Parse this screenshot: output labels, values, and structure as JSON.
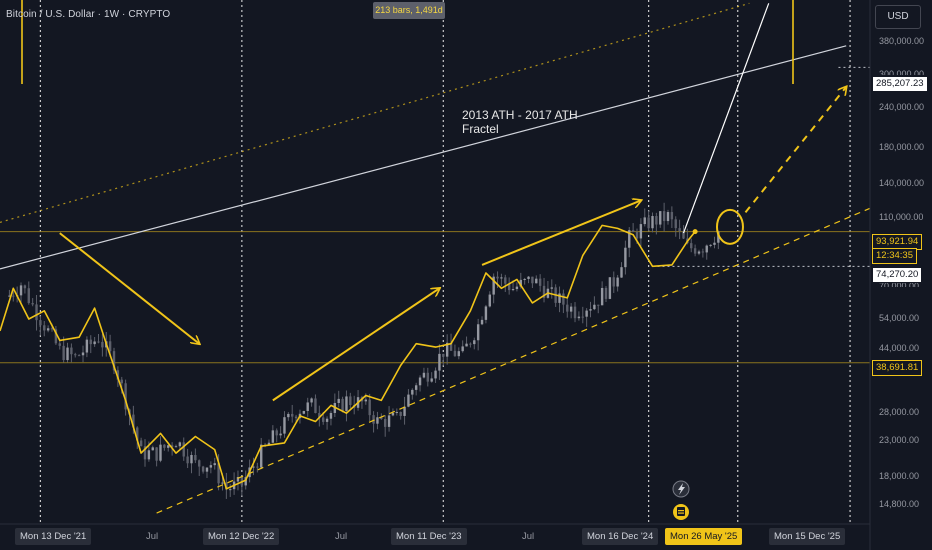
{
  "header": {
    "symbol_title": "Bitcoin / U.S. Dollar · 1W · CRYPTO"
  },
  "currency_button": {
    "label": "USD"
  },
  "measure_label": "213 bars, 1,491d",
  "annotation": {
    "line1": "2013 ATH - 2017 ATH",
    "line2": "Fractel"
  },
  "price_axis": {
    "labels": [
      "380,000.00",
      "240,000.00",
      "180,000.00",
      "140,000.00",
      "110,000.00",
      "54,000.00",
      "44,000.00",
      "28,000.00",
      "23,000.00",
      "18,000.00",
      "14,800.00"
    ],
    "partial_labels": [
      "300,000.00",
      "70,000.00"
    ]
  },
  "price_badges": {
    "target": "285,207.23",
    "current_price": "93,921.94",
    "countdown": "12:34:35",
    "level_low": "74,270.20",
    "level_support": "38,691.81"
  },
  "time_axis": {
    "labels": [
      {
        "text": "Mon 13 Dec '21",
        "style": "box"
      },
      {
        "text": "Jul",
        "style": "plain"
      },
      {
        "text": "Mon 12 Dec '22",
        "style": "box"
      },
      {
        "text": "Jul",
        "style": "plain"
      },
      {
        "text": "Mon 11 Dec '23",
        "style": "box"
      },
      {
        "text": "Jul",
        "style": "plain"
      },
      {
        "text": "Mon 16 Dec '24",
        "style": "box"
      },
      {
        "text": "Mon 26 May '25",
        "style": "highlight"
      },
      {
        "text": "Mon 15 Dec '25",
        "style": "box"
      }
    ]
  },
  "colors": {
    "background": "#131722",
    "fractal_line": "#f0c419",
    "candles": "#787b86",
    "trendline": "#d1d4dc"
  },
  "icons": [
    "flash-icon",
    "flag-icon"
  ],
  "chart_data": {
    "type": "line",
    "title": "Bitcoin / U.S. Dollar · 1W · CRYPTO",
    "y_scale": "log",
    "ylim": [
      13000,
      450000
    ],
    "x_range": [
      "2021-10-01",
      "2026-01-20"
    ],
    "series": [
      {
        "type": "candlestick",
        "points": [
          [
            "2021-10-18",
            61000
          ],
          [
            "2021-11-08",
            66000
          ],
          [
            "2021-11-29",
            57000
          ],
          [
            "2021-12-20",
            50000
          ],
          [
            "2022-01-17",
            42000
          ],
          [
            "2022-02-14",
            40000
          ],
          [
            "2022-03-28",
            46000
          ],
          [
            "2022-04-25",
            39000
          ],
          [
            "2022-05-16",
            30000
          ],
          [
            "2022-06-13",
            21000
          ],
          [
            "2022-07-11",
            21000
          ],
          [
            "2022-08-15",
            23000
          ],
          [
            "2022-09-19",
            19500
          ],
          [
            "2022-10-17",
            19500
          ],
          [
            "2022-11-14",
            16500
          ],
          [
            "2022-12-12",
            17000
          ],
          [
            "2023-01-16",
            21000
          ],
          [
            "2023-02-13",
            24000
          ],
          [
            "2023-03-20",
            28000
          ],
          [
            "2023-04-17",
            29000
          ],
          [
            "2023-05-15",
            27000
          ],
          [
            "2023-06-19",
            30000
          ],
          [
            "2023-07-17",
            29500
          ],
          [
            "2023-08-14",
            26000
          ],
          [
            "2023-09-18",
            26500
          ],
          [
            "2023-10-23",
            34000
          ],
          [
            "2023-11-20",
            37000
          ],
          [
            "2023-12-11",
            42000
          ],
          [
            "2024-01-15",
            41000
          ],
          [
            "2024-02-12",
            50000
          ],
          [
            "2024-03-11",
            70000
          ],
          [
            "2024-04-15",
            64000
          ],
          [
            "2024-05-20",
            68000
          ],
          [
            "2024-06-24",
            61000
          ],
          [
            "2024-08-05",
            55000
          ],
          [
            "2024-09-09",
            58000
          ],
          [
            "2024-10-14",
            67000
          ],
          [
            "2024-11-11",
            90000
          ],
          [
            "2024-12-16",
            100000
          ],
          [
            "2025-01-20",
            104000
          ],
          [
            "2025-02-24",
            84000
          ],
          [
            "2025-03-24",
            85000
          ],
          [
            "2025-04-21",
            93921.94
          ]
        ]
      },
      {
        "name": "2013 ATH - 2017 ATH",
        "type": "line",
        "points": [
          [
            "2021-10-01",
            48000
          ],
          [
            "2021-10-25",
            64000
          ],
          [
            "2021-11-22",
            52000
          ],
          [
            "2021-12-20",
            55000
          ],
          [
            "2022-01-17",
            45000
          ],
          [
            "2022-02-21",
            46000
          ],
          [
            "2022-03-21",
            56000
          ],
          [
            "2022-04-11",
            44000
          ],
          [
            "2022-05-16",
            30000
          ],
          [
            "2022-06-13",
            21000
          ],
          [
            "2022-07-18",
            24000
          ],
          [
            "2022-08-15",
            21000
          ],
          [
            "2022-09-19",
            23500
          ],
          [
            "2022-10-24",
            21500
          ],
          [
            "2022-11-14",
            16500
          ],
          [
            "2022-12-19",
            17500
          ],
          [
            "2023-01-16",
            22000
          ],
          [
            "2023-02-27",
            22500
          ],
          [
            "2023-03-27",
            27000
          ],
          [
            "2023-04-24",
            26000
          ],
          [
            "2023-05-22",
            29000
          ],
          [
            "2023-06-19",
            27500
          ],
          [
            "2023-07-24",
            31000
          ],
          [
            "2023-08-21",
            30000
          ],
          [
            "2023-09-25",
            38000
          ],
          [
            "2023-10-23",
            44000
          ],
          [
            "2023-11-27",
            43000
          ],
          [
            "2023-12-25",
            44000
          ],
          [
            "2024-01-29",
            55000
          ],
          [
            "2024-02-26",
            71000
          ],
          [
            "2024-03-25",
            64000
          ],
          [
            "2024-04-22",
            68000
          ],
          [
            "2024-05-20",
            58000
          ],
          [
            "2024-06-17",
            62000
          ],
          [
            "2024-07-22",
            60000
          ],
          [
            "2024-08-19",
            80000
          ],
          [
            "2024-09-23",
            98000
          ],
          [
            "2024-10-21",
            96000
          ],
          [
            "2024-11-18",
            92000
          ],
          [
            "2024-12-23",
            74270.2
          ],
          [
            "2025-01-27",
            75000
          ],
          [
            "2025-02-24",
            88000
          ],
          [
            "2025-03-10",
            93921.94
          ]
        ]
      }
    ],
    "drawings": [
      {
        "kind": "trendline",
        "from": [
          "2021-10-01",
          73000
        ],
        "to": [
          "2025-12-08",
          330000
        ],
        "color": "#d1d4dc"
      },
      {
        "kind": "trendline",
        "style": "dotted",
        "from": [
          "2021-10-01",
          100000
        ],
        "to": [
          "2025-06-16",
          440000
        ],
        "color": "#f0c419"
      },
      {
        "kind": "trendline",
        "style": "dashed",
        "from": [
          "2022-07-11",
          14000
        ],
        "to": [
          "2026-01-20",
          110000
        ],
        "color": "#f0c419"
      },
      {
        "kind": "trendline",
        "from": [
          "2025-02-17",
          93000
        ],
        "to": [
          "2025-07-21",
          440000
        ],
        "color": "#ffffff"
      },
      {
        "kind": "arrow",
        "from": [
          "2022-01-17",
          93000
        ],
        "to": [
          "2022-09-26",
          44000
        ],
        "color": "#f0c419"
      },
      {
        "kind": "arrow",
        "from": [
          "2023-02-06",
          30000
        ],
        "to": [
          "2023-12-04",
          64000
        ],
        "color": "#f0c419"
      },
      {
        "kind": "arrow",
        "from": [
          "2024-02-19",
          75000
        ],
        "to": [
          "2024-12-02",
          116000
        ],
        "color": "#f0c419"
      },
      {
        "kind": "arrow",
        "style": "dashed",
        "from": [
          "2025-06-09",
          107000
        ],
        "to": [
          "2025-12-08",
          250000
        ],
        "color": "#f0c419"
      },
      {
        "kind": "ellipse",
        "center": [
          "2025-05-12",
          97000
        ],
        "color": "#f0c419"
      }
    ],
    "horizontal_levels": [
      93921.94,
      74270.2,
      38691.81,
      285207.23
    ],
    "vertical_markers": [
      "2021-12-13",
      "2022-12-12",
      "2023-12-11",
      "2024-12-16",
      "2025-05-26",
      "2025-12-15"
    ]
  }
}
